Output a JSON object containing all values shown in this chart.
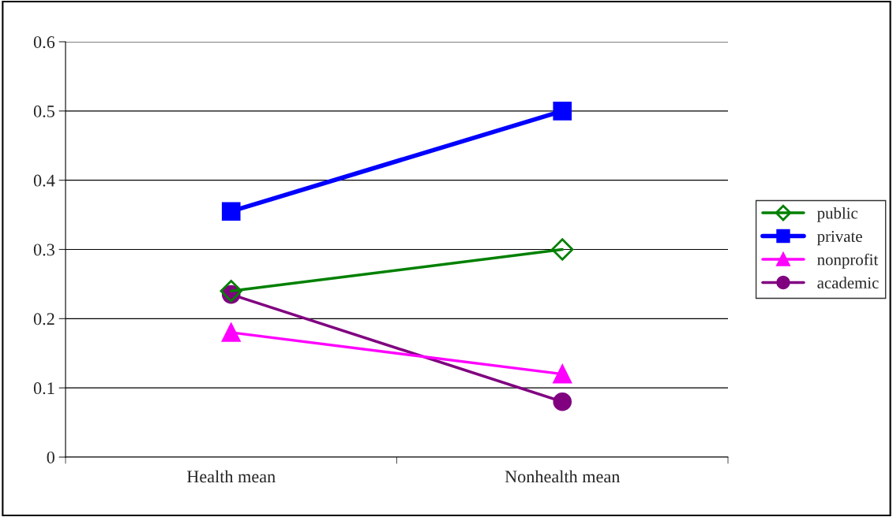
{
  "chart_data": {
    "type": "line",
    "categories": [
      "Health mean",
      "Nonhealth mean"
    ],
    "series": [
      {
        "name": "public",
        "color": "#008000",
        "marker": "diamond",
        "values": [
          0.24,
          0.3
        ]
      },
      {
        "name": "private",
        "color": "#0000ff",
        "marker": "square",
        "values": [
          0.355,
          0.5
        ]
      },
      {
        "name": "nonprofit",
        "color": "#ff00ff",
        "marker": "triangle",
        "values": [
          0.18,
          0.12
        ]
      },
      {
        "name": "academic",
        "color": "#800080",
        "marker": "circle",
        "values": [
          0.235,
          0.08
        ]
      }
    ],
    "ylim": [
      0,
      0.6
    ],
    "yticks": [
      0,
      0.1,
      0.2,
      0.3,
      0.4,
      0.5,
      0.6
    ],
    "grid": "y",
    "legend": "right",
    "line_style": "solid"
  }
}
